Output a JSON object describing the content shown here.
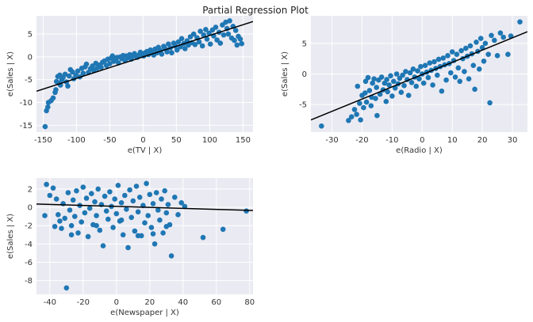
{
  "figure_title": "Partial Regression Plot",
  "chart_data": [
    {
      "type": "scatter",
      "title": "",
      "xlabel": "e(TV | X)",
      "ylabel": "e(Sales | X)",
      "xlim": [
        -160,
        165
      ],
      "ylim": [
        -16.5,
        9
      ],
      "xticks": [
        -150,
        -100,
        -50,
        0,
        50,
        100,
        150
      ],
      "yticks": [
        -15,
        -10,
        -5,
        0,
        5
      ],
      "grid": true,
      "fit_line": {
        "intercept": 0.0,
        "slope": 0.047
      },
      "points": [
        [
          -147,
          -15.3
        ],
        [
          -145,
          -11.8
        ],
        [
          -143,
          -11.0
        ],
        [
          -142,
          -10.0
        ],
        [
          -138,
          -9.6
        ],
        [
          -135,
          -9.0
        ],
        [
          -132,
          -7.8
        ],
        [
          -131,
          -7.2
        ],
        [
          -130,
          -5.4
        ],
        [
          -128,
          -4.3
        ],
        [
          -126,
          -5.8
        ],
        [
          -125,
          -4.0
        ],
        [
          -124,
          -6.2
        ],
        [
          -122,
          -5.0
        ],
        [
          -120,
          -4.5
        ],
        [
          -117,
          -3.8
        ],
        [
          -115,
          -5.5
        ],
        [
          -113,
          -6.4
        ],
        [
          -111,
          -4.2
        ],
        [
          -109,
          -2.8
        ],
        [
          -106,
          -3.3
        ],
        [
          -104,
          -4.8
        ],
        [
          -101,
          -4.0
        ],
        [
          -98,
          -3.1
        ],
        [
          -95,
          -4.4
        ],
        [
          -92,
          -2.5
        ],
        [
          -90,
          -3.6
        ],
        [
          -87,
          -2.2
        ],
        [
          -85,
          -1.6
        ],
        [
          -82,
          -3.4
        ],
        [
          -79,
          -2.6
        ],
        [
          -76,
          -2.0
        ],
        [
          -74,
          -3.0
        ],
        [
          -71,
          -1.4
        ],
        [
          -69,
          -2.5
        ],
        [
          -66,
          -1.8
        ],
        [
          -63,
          -2.3
        ],
        [
          -61,
          -1.2
        ],
        [
          -58,
          -0.9
        ],
        [
          -55,
          -1.9
        ],
        [
          -53,
          -0.5
        ],
        [
          -50,
          -1.5
        ],
        [
          -48,
          -0.3
        ],
        [
          -46,
          0.2
        ],
        [
          -44,
          -1.0
        ],
        [
          -41,
          -0.6
        ],
        [
          -39,
          -0.1
        ],
        [
          -37,
          -1.3
        ],
        [
          -34,
          0.0
        ],
        [
          -32,
          -0.4
        ],
        [
          -30,
          0.3
        ],
        [
          -27,
          -0.8
        ],
        [
          -25,
          0.2
        ],
        [
          -23,
          -0.2
        ],
        [
          -20,
          0.5
        ],
        [
          -18,
          -0.5
        ],
        [
          -16,
          0.1
        ],
        [
          -13,
          0.7
        ],
        [
          -11,
          0.3
        ],
        [
          -9,
          -0.1
        ],
        [
          -6,
          0.4
        ],
        [
          -4,
          1.0
        ],
        [
          -2,
          0.6
        ],
        [
          1,
          0.2
        ],
        [
          3,
          0.9
        ],
        [
          6,
          1.2
        ],
        [
          8,
          0.5
        ],
        [
          11,
          1.5
        ],
        [
          13,
          1.0
        ],
        [
          16,
          0.4
        ],
        [
          18,
          1.7
        ],
        [
          21,
          0.9
        ],
        [
          23,
          2.1
        ],
        [
          26,
          1.4
        ],
        [
          28,
          0.6
        ],
        [
          31,
          2.3
        ],
        [
          33,
          1.8
        ],
        [
          36,
          1.1
        ],
        [
          38,
          2.8
        ],
        [
          41,
          2.0
        ],
        [
          43,
          0.9
        ],
        [
          46,
          3.0
        ],
        [
          48,
          2.4
        ],
        [
          51,
          1.5
        ],
        [
          53,
          3.3
        ],
        [
          56,
          2.2
        ],
        [
          58,
          4.0
        ],
        [
          61,
          2.9
        ],
        [
          63,
          1.8
        ],
        [
          66,
          3.5
        ],
        [
          68,
          2.6
        ],
        [
          71,
          4.4
        ],
        [
          73,
          3.1
        ],
        [
          76,
          5.0
        ],
        [
          78,
          2.7
        ],
        [
          81,
          4.2
        ],
        [
          84,
          3.3
        ],
        [
          86,
          5.6
        ],
        [
          89,
          2.4
        ],
        [
          91,
          4.8
        ],
        [
          94,
          6.0
        ],
        [
          96,
          3.9
        ],
        [
          99,
          5.2
        ],
        [
          101,
          2.8
        ],
        [
          104,
          5.9
        ],
        [
          106,
          4.6
        ],
        [
          109,
          6.5
        ],
        [
          111,
          3.7
        ],
        [
          114,
          5.4
        ],
        [
          116,
          3.0
        ],
        [
          119,
          7.0
        ],
        [
          121,
          4.8
        ],
        [
          124,
          7.6
        ],
        [
          126,
          6.2
        ],
        [
          128,
          5.0
        ],
        [
          130,
          7.9
        ],
        [
          133,
          4.1
        ],
        [
          135,
          6.7
        ],
        [
          137,
          3.6
        ],
        [
          139,
          5.8
        ],
        [
          141,
          2.6
        ],
        [
          143,
          4.5
        ],
        [
          146,
          3.9
        ],
        [
          148,
          2.9
        ]
      ]
    },
    {
      "type": "scatter",
      "title": "",
      "xlabel": "e(Radio | X)",
      "ylabel": "e(Sales | X)",
      "xlim": [
        -37,
        35
      ],
      "ylim": [
        -9.5,
        9.5
      ],
      "xticks": [
        -30,
        -20,
        -10,
        0,
        10,
        20,
        30
      ],
      "yticks": [
        -5,
        0,
        5
      ],
      "grid": true,
      "fit_line": {
        "intercept": -0.1,
        "slope": 0.2
      },
      "points": [
        [
          -33.5,
          -8.5
        ],
        [
          -24.5,
          -7.6
        ],
        [
          -23.5,
          -7.0
        ],
        [
          -22.5,
          -5.8
        ],
        [
          -21.8,
          -6.6
        ],
        [
          -21.5,
          -2.0
        ],
        [
          -20.8,
          -4.8
        ],
        [
          -20.5,
          -7.5
        ],
        [
          -20.0,
          -3.5
        ],
        [
          -19.5,
          -5.5
        ],
        [
          -19.0,
          -3.1
        ],
        [
          -18.8,
          -1.2
        ],
        [
          -18.5,
          -4.6
        ],
        [
          -18.0,
          -0.6
        ],
        [
          -17.5,
          -2.7
        ],
        [
          -17.0,
          -5.2
        ],
        [
          -16.8,
          -3.8
        ],
        [
          -16.5,
          -1.5
        ],
        [
          -16.0,
          -0.8
        ],
        [
          -15.5,
          -4.0
        ],
        [
          -15.2,
          -2.2
        ],
        [
          -15.0,
          -6.8
        ],
        [
          -14.5,
          -1.0
        ],
        [
          -14.0,
          -3.3
        ],
        [
          -13.5,
          -0.5
        ],
        [
          -13.0,
          -2.6
        ],
        [
          -12.5,
          -1.5
        ],
        [
          -12.0,
          -4.5
        ],
        [
          -11.8,
          -0.9
        ],
        [
          -11.5,
          -2.9
        ],
        [
          -11.0,
          -1.8
        ],
        [
          -10.5,
          -0.3
        ],
        [
          -10.0,
          -3.6
        ],
        [
          -9.5,
          -1.2
        ],
        [
          -9.0,
          -2.3
        ],
        [
          -8.5,
          0.0
        ],
        [
          -8.0,
          -1.6
        ],
        [
          -7.5,
          -0.7
        ],
        [
          -7.0,
          -3.0
        ],
        [
          -6.5,
          -0.2
        ],
        [
          -6.0,
          -1.9
        ],
        [
          -5.5,
          0.4
        ],
        [
          -5.0,
          -0.9
        ],
        [
          -4.5,
          -3.5
        ],
        [
          -4.0,
          0.2
        ],
        [
          -3.5,
          -1.4
        ],
        [
          -3.0,
          0.8
        ],
        [
          -2.5,
          -0.5
        ],
        [
          -2.0,
          -2.0
        ],
        [
          -1.5,
          0.5
        ],
        [
          -1.0,
          -0.8
        ],
        [
          -0.5,
          1.2
        ],
        [
          0.0,
          0.0
        ],
        [
          0.5,
          -1.5
        ],
        [
          1.0,
          1.4
        ],
        [
          1.5,
          0.3
        ],
        [
          2.0,
          -0.6
        ],
        [
          2.5,
          1.8
        ],
        [
          3.0,
          0.6
        ],
        [
          3.5,
          -1.8
        ],
        [
          4.0,
          2.0
        ],
        [
          4.5,
          0.9
        ],
        [
          5.0,
          -0.2
        ],
        [
          5.5,
          2.4
        ],
        [
          6.0,
          1.2
        ],
        [
          6.5,
          -2.8
        ],
        [
          7.0,
          2.6
        ],
        [
          7.5,
          1.5
        ],
        [
          8.0,
          -1.0
        ],
        [
          8.5,
          3.0
        ],
        [
          9.0,
          1.7
        ],
        [
          9.5,
          0.2
        ],
        [
          10.0,
          3.6
        ],
        [
          10.5,
          2.2
        ],
        [
          11.0,
          -0.5
        ],
        [
          11.5,
          3.2
        ],
        [
          12.0,
          1.0
        ],
        [
          12.5,
          -1.2
        ],
        [
          13.0,
          3.8
        ],
        [
          13.5,
          2.5
        ],
        [
          14.0,
          0.4
        ],
        [
          14.5,
          4.2
        ],
        [
          15.0,
          2.9
        ],
        [
          15.5,
          -0.8
        ],
        [
          16.0,
          4.6
        ],
        [
          16.5,
          3.3
        ],
        [
          17.0,
          1.4
        ],
        [
          17.5,
          -2.5
        ],
        [
          18.0,
          5.2
        ],
        [
          18.5,
          3.7
        ],
        [
          19.0,
          0.8
        ],
        [
          19.5,
          5.8
        ],
        [
          20.0,
          4.3
        ],
        [
          20.5,
          2.1
        ],
        [
          21.0,
          5.0
        ],
        [
          22.0,
          3.2
        ],
        [
          22.5,
          -4.7
        ],
        [
          23.0,
          6.3
        ],
        [
          24.0,
          5.5
        ],
        [
          25.0,
          3.0
        ],
        [
          26.0,
          6.7
        ],
        [
          27.0,
          6.0
        ],
        [
          28.5,
          3.2
        ],
        [
          29.5,
          6.2
        ],
        [
          32.5,
          8.5
        ]
      ]
    },
    {
      "type": "scatter",
      "title": "",
      "xlabel": "e(Newspaper | X)",
      "ylabel": "e(Sales | X)",
      "xlim": [
        -48,
        82
      ],
      "ylim": [
        -9.5,
        3.2
      ],
      "xticks": [
        -40,
        -20,
        0,
        20,
        40,
        60,
        80
      ],
      "yticks": [
        -8,
        -6,
        -4,
        -2,
        0,
        2
      ],
      "grid": true,
      "fit_line": {
        "intercept": 0.1,
        "slope": -0.0054
      },
      "points": [
        [
          -42,
          2.5
        ],
        [
          -40,
          1.3
        ],
        [
          -38,
          2.1
        ],
        [
          -36,
          0.9
        ],
        [
          -35,
          -0.8
        ],
        [
          -34,
          -1.5
        ],
        [
          -33,
          -2.3
        ],
        [
          -32,
          0.4
        ],
        [
          -31,
          -1.2
        ],
        [
          -30,
          -8.8
        ],
        [
          -29,
          1.6
        ],
        [
          -28,
          -0.3
        ],
        [
          -27,
          -2.0
        ],
        [
          -26,
          0.8
        ],
        [
          -25,
          -1.0
        ],
        [
          -24,
          1.8
        ],
        [
          -23,
          -2.8
        ],
        [
          -22,
          0.2
        ],
        [
          -21,
          -1.6
        ],
        [
          -20,
          2.2
        ],
        [
          -19,
          -0.6
        ],
        [
          -18,
          1.0
        ],
        [
          -17,
          -3.2
        ],
        [
          -16,
          -0.1
        ],
        [
          -15,
          1.5
        ],
        [
          -14,
          -1.9
        ],
        [
          -13,
          0.6
        ],
        [
          -12,
          -0.9
        ],
        [
          -11,
          2.0
        ],
        [
          -10,
          -2.5
        ],
        [
          -9,
          0.3
        ],
        [
          -8,
          -4.2
        ],
        [
          -7,
          1.2
        ],
        [
          -6,
          -0.4
        ],
        [
          -5,
          -1.3
        ],
        [
          -4,
          1.7
        ],
        [
          -3,
          0.1
        ],
        [
          -2,
          -2.2
        ],
        [
          -1,
          0.9
        ],
        [
          0,
          -0.7
        ],
        [
          1,
          2.4
        ],
        [
          2,
          -1.5
        ],
        [
          3,
          0.5
        ],
        [
          4,
          -3.0
        ],
        [
          5,
          1.3
        ],
        [
          6,
          -0.2
        ],
        [
          7,
          -4.4
        ],
        [
          8,
          1.9
        ],
        [
          9,
          -1.1
        ],
        [
          10,
          0.7
        ],
        [
          11,
          -2.6
        ],
        [
          12,
          2.3
        ],
        [
          13,
          -0.5
        ],
        [
          14,
          1.1
        ],
        [
          15,
          -3.1
        ],
        [
          16,
          0.2
        ],
        [
          17,
          -1.7
        ],
        [
          18,
          2.6
        ],
        [
          19,
          -0.9
        ],
        [
          20,
          1.4
        ],
        [
          21,
          -2.2
        ],
        [
          22,
          0.4
        ],
        [
          23,
          -4.0
        ],
        [
          24,
          1.6
        ],
        [
          25,
          -0.3
        ],
        [
          26,
          -1.4
        ],
        [
          27,
          0.9
        ],
        [
          28,
          -2.8
        ],
        [
          29,
          1.8
        ],
        [
          30,
          -0.6
        ],
        [
          31,
          0.3
        ],
        [
          32,
          -1.9
        ],
        [
          33,
          -5.3
        ],
        [
          35,
          1.1
        ],
        [
          37,
          -0.8
        ],
        [
          39,
          0.5
        ],
        [
          41,
          0.1
        ],
        [
          52,
          -3.3
        ],
        [
          64,
          -2.4
        ],
        [
          78,
          -0.4
        ],
        [
          -43,
          -0.9
        ],
        [
          -37,
          -2.1
        ],
        [
          -27,
          -3.0
        ],
        [
          -12,
          -2.0
        ],
        [
          3,
          -1.4
        ],
        [
          13,
          -3.1
        ],
        [
          22,
          -2.9
        ],
        [
          30,
          -2.1
        ]
      ]
    }
  ]
}
